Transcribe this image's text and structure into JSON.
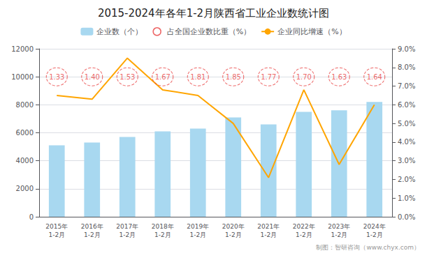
{
  "chart_data": {
    "type": "bar",
    "title": "2015-2024年各年1-2月陕西省工业企业数统计图",
    "categories": [
      "2015年\n1-2月",
      "2016年\n1-2月",
      "2017年\n1-2月",
      "2018年\n1-2月",
      "2019年\n1-2月",
      "2020年\n1-2月",
      "2021年\n1-2月",
      "2022年\n1-2月",
      "2023年\n1-2月",
      "2024年\n1-2月"
    ],
    "series": [
      {
        "name": "企业数（个）",
        "type": "bar",
        "color": "#A8D8F0",
        "values": [
          5100,
          5300,
          5700,
          6100,
          6300,
          7100,
          6600,
          7500,
          7600,
          8200
        ]
      },
      {
        "name": "占全国企业数比重（%）",
        "type": "scatter",
        "marker": "circle",
        "line_style": "dashed",
        "color": "#E84040",
        "data_labels": true,
        "values": [
          1.33,
          1.4,
          1.53,
          1.67,
          1.81,
          1.85,
          1.77,
          1.7,
          1.63,
          1.64
        ],
        "value_labels": [
          "1.33",
          "1.40",
          "1.53",
          "1.67",
          "1.81",
          "1.85",
          "1.77",
          "1.70",
          "1.63",
          "1.64"
        ]
      },
      {
        "name": "企业同比增速（%）",
        "type": "line",
        "axis": "y2",
        "color": "#FFA500",
        "values": [
          6.5,
          6.3,
          8.5,
          6.8,
          6.5,
          5.0,
          2.1,
          6.8,
          2.8,
          6.0
        ]
      }
    ],
    "ylim": [
      0,
      12000
    ],
    "yticks": [
      0,
      2000,
      4000,
      6000,
      8000,
      10000,
      12000
    ],
    "y2lim": [
      0.0,
      9.0
    ],
    "y2ticks": [
      {
        "value": 0,
        "label": "0.0%"
      },
      {
        "value": 1,
        "label": "1.0%"
      },
      {
        "value": 2,
        "label": "2.0%"
      },
      {
        "value": 3,
        "label": "3.0%"
      },
      {
        "value": 4,
        "label": "4.0%"
      },
      {
        "value": 5,
        "label": "5.0%"
      },
      {
        "value": 6,
        "label": "6.0%"
      },
      {
        "value": 7,
        "label": "7.0%"
      },
      {
        "value": 8,
        "label": "8.0%"
      },
      {
        "value": 9,
        "label": "9.0%"
      }
    ],
    "grid": true,
    "legend": "top",
    "annotations": [
      "制图：智研咨询（www.chyx.com）"
    ]
  }
}
